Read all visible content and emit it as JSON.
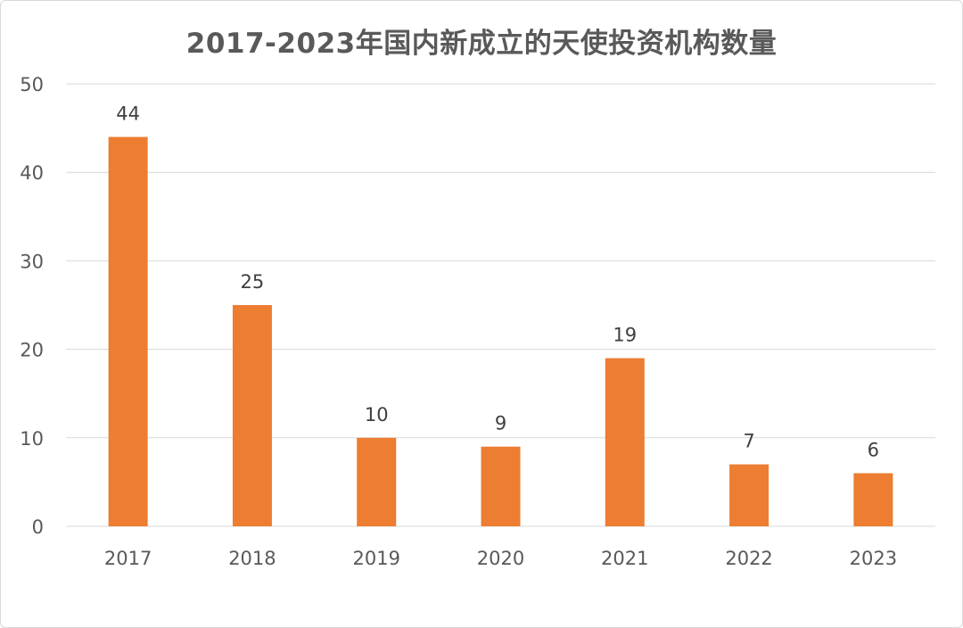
{
  "chart_data": {
    "type": "bar",
    "title": "2017-2023年国内新成立的天使投资机构数量",
    "xlabel": "",
    "ylabel": "",
    "categories": [
      "2017",
      "2018",
      "2019",
      "2020",
      "2021",
      "2022",
      "2023"
    ],
    "values": [
      44,
      25,
      10,
      9,
      19,
      7,
      6
    ],
    "ylim": [
      0,
      50
    ],
    "yticks": [
      0,
      10,
      20,
      30,
      40,
      50
    ],
    "grid": true,
    "legend": "none",
    "bar_color": "#ED7D31",
    "grid_color": "#d9d9d9"
  }
}
